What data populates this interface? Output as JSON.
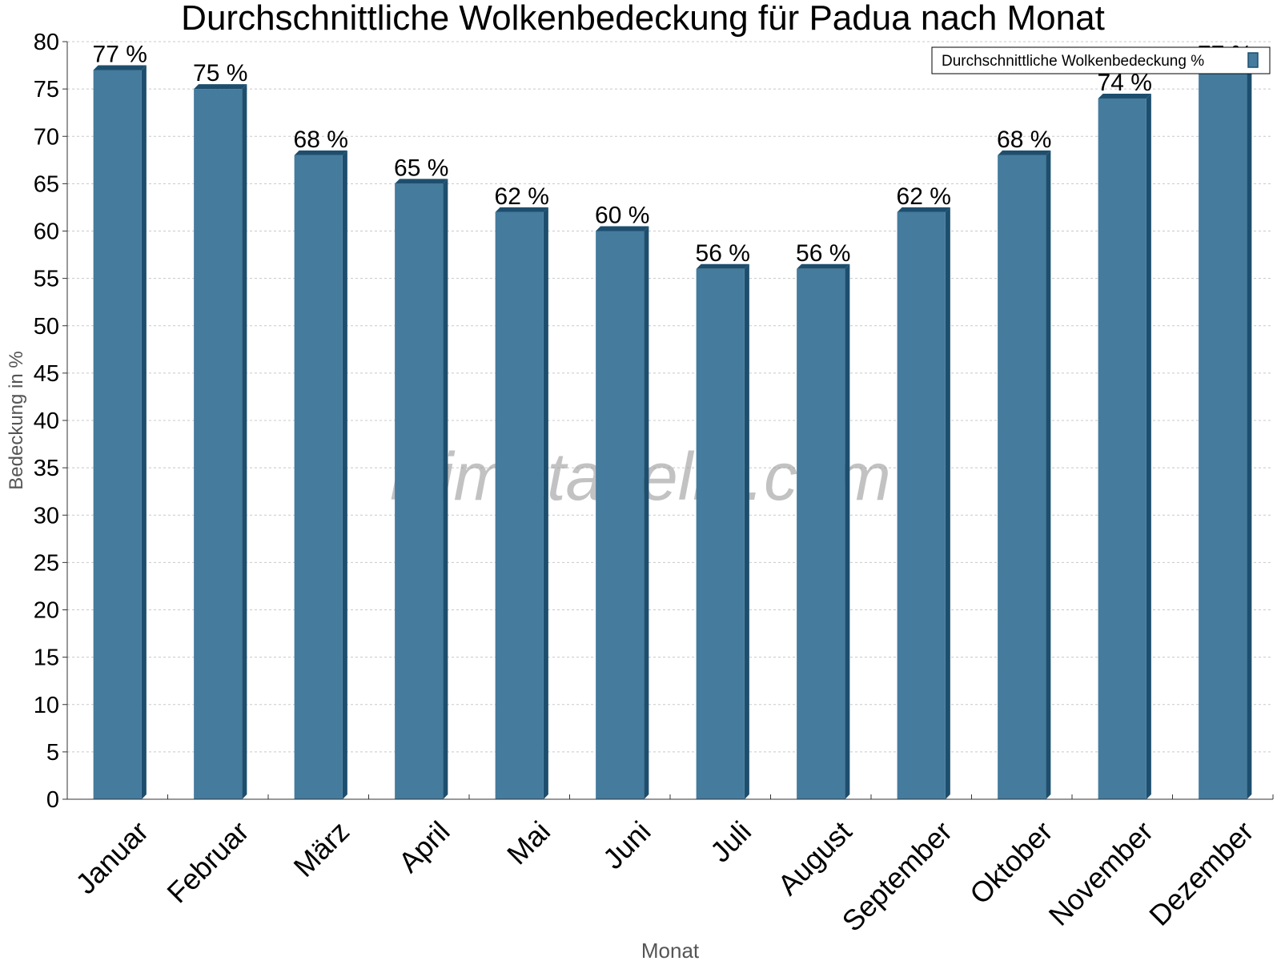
{
  "chart_data": {
    "type": "bar",
    "title": "Durchschnittliche Wolkenbedeckung für Padua nach Monat",
    "xlabel": "Monat",
    "ylabel": "Bedeckung in %",
    "categories": [
      "Januar",
      "Februar",
      "März",
      "April",
      "Mai",
      "Juni",
      "Juli",
      "August",
      "September",
      "Oktober",
      "November",
      "Dezember"
    ],
    "series": [
      {
        "name": "Durchschnittliche Wolkenbedeckung %",
        "values": [
          77,
          75,
          68,
          65,
          62,
          60,
          56,
          56,
          62,
          68,
          74,
          77
        ],
        "value_labels": [
          "77 %",
          "75 %",
          "68 %",
          "65 %",
          "62 %",
          "60 %",
          "56 %",
          "56 %",
          "62 %",
          "68 %",
          "74 %",
          "77 %"
        ],
        "color": "#457b9d",
        "edge_color": "#1d4e6e"
      }
    ],
    "ylim": [
      0,
      80
    ],
    "yticks": [
      0,
      5,
      10,
      15,
      20,
      25,
      30,
      35,
      40,
      45,
      50,
      55,
      60,
      65,
      70,
      75,
      80
    ],
    "grid": true,
    "legend_position": "top-right"
  },
  "watermark": "klimatabelle.com"
}
